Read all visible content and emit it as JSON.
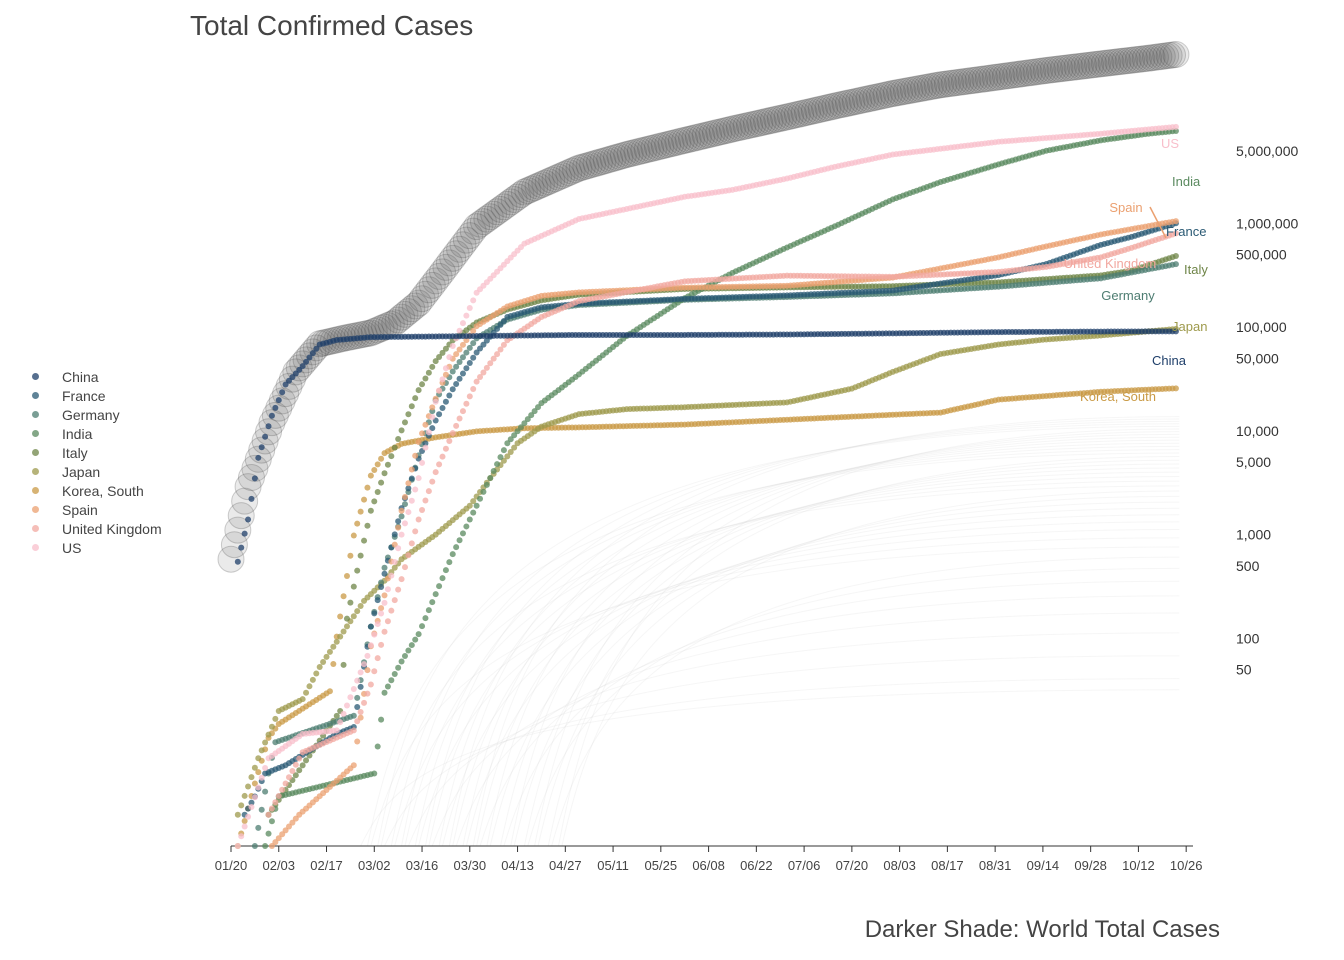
{
  "title": "Total Confirmed Cases",
  "caption": "Darker Shade: World Total Cases",
  "colors": {
    "world": "#555555",
    "China": "#1F3F6A",
    "France": "#2A5A74",
    "Germany": "#4E7D72",
    "India": "#5A8A5F",
    "Italy": "#6F8548",
    "Japan": "#9E9A4C",
    "Korea, South": "#C99A45",
    "Spain": "#EBA070",
    "United Kingdom": "#F2A8A0",
    "US": "#F8BFCB"
  },
  "chart_data": {
    "type": "scatter",
    "title": "Total Confirmed Cases",
    "caption": "Darker Shade: World Total Cases",
    "yscale": "log",
    "ylim": [
      1,
      30000000
    ],
    "xlim": [
      "2020-01-20",
      "2020-10-28"
    ],
    "x_tick_labels": [
      "01/20",
      "02/03",
      "02/17",
      "03/02",
      "03/16",
      "03/30",
      "04/13",
      "04/27",
      "05/11",
      "05/25",
      "06/08",
      "06/22",
      "07/06",
      "07/20",
      "08/03",
      "08/17",
      "08/31",
      "09/14",
      "09/28",
      "10/12",
      "10/26"
    ],
    "y_tick_values": [
      5000000,
      1000000,
      500000,
      100000,
      50000,
      10000,
      5000,
      1000,
      500,
      100,
      50
    ],
    "y_tick_labels": [
      "5,000,000",
      "1,000,000",
      "500,000",
      "100,000",
      "50,000",
      "10,000",
      "5,000",
      "1,000",
      "500",
      "100",
      "50"
    ],
    "grid": false,
    "legend": "left",
    "series": [
      {
        "name": "World",
        "legend": false,
        "dates": [
          "2020-01-20",
          "2020-01-25",
          "2020-02-01",
          "2020-02-08",
          "2020-02-15",
          "2020-02-22",
          "2020-03-01",
          "2020-03-08",
          "2020-03-15",
          "2020-03-22",
          "2020-04-01",
          "2020-04-15",
          "2020-05-01",
          "2020-05-15",
          "2020-06-01",
          "2020-06-15",
          "2020-07-01",
          "2020-07-15",
          "2020-08-01",
          "2020-08-15",
          "2020-09-01",
          "2020-09-15",
          "2020-10-01",
          "2020-10-15",
          "2020-10-23"
        ],
        "values": [
          580,
          2900,
          12000,
          37000,
          69000,
          78000,
          88000,
          110000,
          170000,
          340000,
          930000,
          2000000,
          3400000,
          4600000,
          6300000,
          8100000,
          10600000,
          13500000,
          17800000,
          21600000,
          25700000,
          29700000,
          34400000,
          39000000,
          42300000
        ]
      },
      {
        "name": "China",
        "dates": [
          "2020-01-22",
          "2020-01-25",
          "2020-01-28",
          "2020-02-01",
          "2020-02-05",
          "2020-02-10",
          "2020-02-15",
          "2020-02-20",
          "2020-03-01",
          "2020-04-01",
          "2020-05-01",
          "2020-06-01",
          "2020-07-01",
          "2020-08-01",
          "2020-09-01",
          "2020-10-01",
          "2020-10-23"
        ],
        "values": [
          548,
          1400,
          5500,
          14000,
          28000,
          42000,
          68000,
          75000,
          80000,
          82000,
          84000,
          84000,
          84800,
          87000,
          89500,
          90500,
          91000
        ],
        "end_label": "China"
      },
      {
        "name": "France",
        "dates": [
          "2020-01-24",
          "2020-01-27",
          "2020-01-30",
          "2020-02-05",
          "2020-02-20",
          "2020-02-25",
          "2020-03-01",
          "2020-03-05",
          "2020-03-10",
          "2020-03-15",
          "2020-03-20",
          "2020-03-25",
          "2020-04-01",
          "2020-04-10",
          "2020-04-20",
          "2020-05-01",
          "2020-06-01",
          "2020-07-01",
          "2020-08-01",
          "2020-09-01",
          "2020-09-15",
          "2020-10-01",
          "2020-10-10",
          "2020-10-23"
        ],
        "values": [
          2,
          3,
          5,
          6,
          12,
          14,
          130,
          420,
          1800,
          5400,
          12600,
          25200,
          56900,
          125000,
          155000,
          168000,
          187000,
          202000,
          225000,
          317000,
          405000,
          620000,
          740000,
          1000000
        ],
        "end_label": "France"
      },
      {
        "name": "Germany",
        "dates": [
          "2020-01-27",
          "2020-01-31",
          "2020-02-02",
          "2020-02-25",
          "2020-03-01",
          "2020-03-05",
          "2020-03-10",
          "2020-03-15",
          "2020-03-20",
          "2020-03-25",
          "2020-04-01",
          "2020-04-10",
          "2020-04-20",
          "2020-05-01",
          "2020-06-01",
          "2020-07-01",
          "2020-08-01",
          "2020-09-01",
          "2020-10-01",
          "2020-10-23"
        ],
        "values": [
          1,
          5,
          10,
          18,
          130,
          480,
          1500,
          5800,
          19800,
          37300,
          77900,
          118000,
          147000,
          163000,
          183000,
          195000,
          211000,
          245000,
          295000,
          404000
        ],
        "end_label": "Germany"
      },
      {
        "name": "India",
        "dates": [
          "2020-01-30",
          "2020-02-03",
          "2020-03-02",
          "2020-03-05",
          "2020-03-10",
          "2020-03-15",
          "2020-03-25",
          "2020-04-01",
          "2020-04-10",
          "2020-04-20",
          "2020-05-01",
          "2020-05-15",
          "2020-06-01",
          "2020-06-15",
          "2020-07-01",
          "2020-07-15",
          "2020-08-01",
          "2020-08-15",
          "2020-09-01",
          "2020-09-15",
          "2020-10-01",
          "2020-10-15",
          "2020-10-23"
        ],
        "values": [
          1,
          3,
          5,
          30,
          60,
          110,
          650,
          1900,
          7600,
          18500,
          35000,
          82000,
          190000,
          333000,
          585000,
          936000,
          1700000,
          2500000,
          3700000,
          5000000,
          6300000,
          7300000,
          7760000
        ],
        "end_label": "India"
      },
      {
        "name": "Italy",
        "dates": [
          "2020-01-31",
          "2020-02-21",
          "2020-02-23",
          "2020-02-26",
          "2020-03-01",
          "2020-03-05",
          "2020-03-10",
          "2020-03-15",
          "2020-03-20",
          "2020-03-25",
          "2020-04-01",
          "2020-04-10",
          "2020-04-20",
          "2020-05-01",
          "2020-06-01",
          "2020-07-01",
          "2020-08-01",
          "2020-09-01",
          "2020-10-01",
          "2020-10-10",
          "2020-10-23"
        ],
        "values": [
          2,
          20,
          155,
          450,
          1700,
          3900,
          10100,
          24700,
          47000,
          74400,
          110600,
          147600,
          181000,
          205000,
          233000,
          241000,
          248000,
          270000,
          315000,
          350000,
          484000
        ],
        "end_label": "Italy"
      },
      {
        "name": "Japan",
        "dates": [
          "2020-01-22",
          "2020-01-28",
          "2020-02-03",
          "2020-02-10",
          "2020-02-15",
          "2020-02-20",
          "2020-02-28",
          "2020-03-05",
          "2020-03-10",
          "2020-03-20",
          "2020-03-30",
          "2020-04-05",
          "2020-04-13",
          "2020-04-20",
          "2020-05-01",
          "2020-05-15",
          "2020-06-01",
          "2020-07-01",
          "2020-07-20",
          "2020-08-01",
          "2020-08-15",
          "2020-09-01",
          "2020-09-15",
          "2020-10-01",
          "2020-10-23"
        ],
        "values": [
          2,
          7,
          20,
          26,
          53,
          93,
          230,
          360,
          580,
          1000,
          1900,
          3500,
          7600,
          11000,
          14500,
          16200,
          16900,
          18800,
          25500,
          37000,
          55000,
          68000,
          76000,
          83000,
          96000
        ],
        "end_label": "Japan"
      },
      {
        "name": "Korea, South",
        "dates": [
          "2020-01-22",
          "2020-01-27",
          "2020-01-31",
          "2020-02-03",
          "2020-02-18",
          "2020-02-20",
          "2020-02-25",
          "2020-03-01",
          "2020-03-05",
          "2020-03-10",
          "2020-03-20",
          "2020-04-01",
          "2020-04-15",
          "2020-05-01",
          "2020-06-01",
          "2020-07-01",
          "2020-08-01",
          "2020-08-15",
          "2020-09-01",
          "2020-10-01",
          "2020-10-23"
        ],
        "values": [
          1,
          4,
          11,
          15,
          31,
          104,
          980,
          3700,
          6100,
          7500,
          8650,
          9900,
          10600,
          10800,
          11500,
          12800,
          14300,
          15000,
          20000,
          23800,
          25700
        ],
        "end_label": "Korea, South"
      },
      {
        "name": "Spain",
        "dates": [
          "2020-02-01",
          "2020-02-09",
          "2020-02-25",
          "2020-03-01",
          "2020-03-05",
          "2020-03-10",
          "2020-03-15",
          "2020-03-20",
          "2020-03-25",
          "2020-04-01",
          "2020-04-10",
          "2020-04-20",
          "2020-05-01",
          "2020-06-01",
          "2020-07-01",
          "2020-08-01",
          "2020-09-01",
          "2020-09-15",
          "2020-10-01",
          "2020-10-23"
        ],
        "values": [
          1,
          2,
          6,
          84,
          260,
          1700,
          7800,
          20400,
          49500,
          102000,
          158000,
          200000,
          216000,
          240000,
          250000,
          300000,
          470000,
          600000,
          780000,
          1050000
        ],
        "end_label": "Spain"
      },
      {
        "name": "United Kingdom",
        "dates": [
          "2020-01-31",
          "2020-02-10",
          "2020-02-25",
          "2020-03-01",
          "2020-03-05",
          "2020-03-10",
          "2020-03-15",
          "2020-03-20",
          "2020-03-25",
          "2020-04-01",
          "2020-04-10",
          "2020-04-20",
          "2020-05-01",
          "2020-06-01",
          "2020-07-01",
          "2020-08-01",
          "2020-09-01",
          "2020-09-15",
          "2020-10-01",
          "2020-10-10",
          "2020-10-23"
        ],
        "values": [
          2,
          8,
          13,
          36,
          116,
          373,
          1400,
          4000,
          9500,
          29800,
          74600,
          125000,
          178000,
          276000,
          313000,
          305000,
          340000,
          380000,
          470000,
          580000,
          800000
        ],
        "end_label": "United Kingdom"
      },
      {
        "name": "US",
        "dates": [
          "2020-01-22",
          "2020-01-31",
          "2020-02-10",
          "2020-02-20",
          "2020-02-29",
          "2020-03-05",
          "2020-03-10",
          "2020-03-15",
          "2020-03-20",
          "2020-03-25",
          "2020-04-01",
          "2020-04-15",
          "2020-05-01",
          "2020-06-01",
          "2020-06-15",
          "2020-07-01",
          "2020-07-15",
          "2020-08-01",
          "2020-09-01",
          "2020-10-01",
          "2020-10-23"
        ],
        "values": [
          1,
          7,
          12,
          13,
          68,
          220,
          1000,
          3500,
          19100,
          65800,
          214000,
          637000,
          1100000,
          1800000,
          2100000,
          2700000,
          3500000,
          4600000,
          6100000,
          7300000,
          8500000
        ],
        "end_label": "US"
      }
    ]
  },
  "legend_items": [
    {
      "name": "China"
    },
    {
      "name": "France"
    },
    {
      "name": "Germany"
    },
    {
      "name": "India"
    },
    {
      "name": "Italy"
    },
    {
      "name": "Japan"
    },
    {
      "name": "Korea, South"
    },
    {
      "name": "Spain"
    },
    {
      "name": "United Kingdom"
    },
    {
      "name": "US"
    }
  ]
}
